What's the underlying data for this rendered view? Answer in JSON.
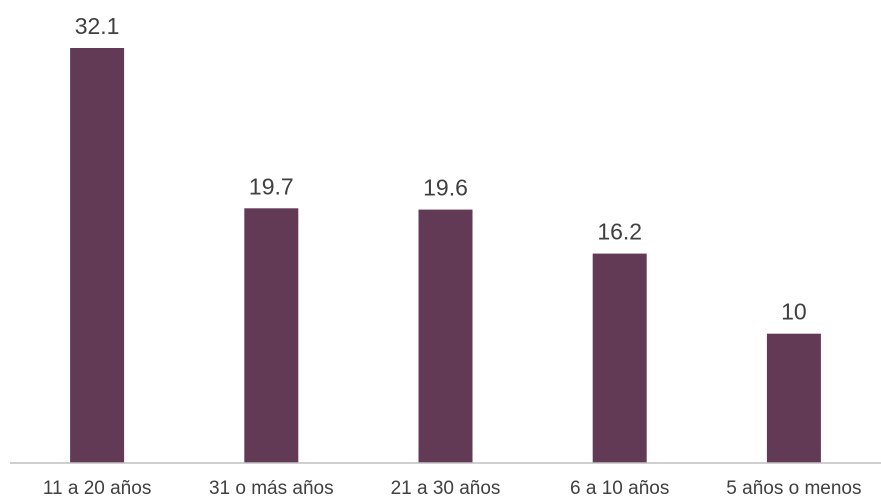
{
  "chart_data": {
    "type": "bar",
    "categories": [
      "11 a 20 años",
      "31 o más años",
      "21 a 30 años",
      "6 a 10 años",
      "5 años o menos"
    ],
    "values": [
      32.1,
      19.7,
      19.6,
      16.2,
      10
    ],
    "value_labels": [
      "32.1",
      "19.7",
      "19.6",
      "16.2",
      "10"
    ],
    "title": "",
    "xlabel": "",
    "ylabel": "",
    "ylim": [
      0,
      32.1
    ],
    "grid": false,
    "legend": "none",
    "bar_color": "#633a56",
    "axis_color": "#bfbfbf",
    "text_color": "#404040"
  }
}
